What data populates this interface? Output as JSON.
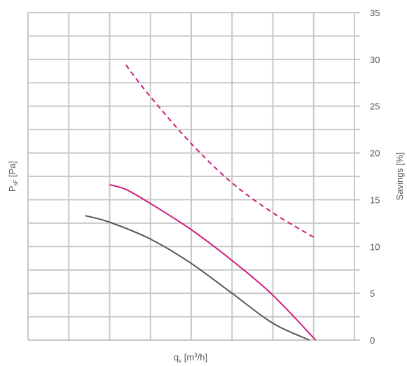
{
  "chart_data": {
    "type": "line",
    "x_axis": {
      "label_main": "q",
      "label_sub": "v",
      "label_unit_open": " [m",
      "label_unit_sup": "3",
      "label_unit_close": "/h]",
      "range": [
        0,
        8
      ],
      "tick_labels_shown": false
    },
    "y_axis_left": {
      "label_main": "P",
      "label_sub": "sF",
      "label_unit": " [Pa]",
      "range": [
        0,
        35
      ],
      "tick_labels_shown": false
    },
    "y_axis_right": {
      "label": "Savings [%]",
      "range": [
        0,
        35
      ],
      "ticks": [
        "0",
        "5",
        "10",
        "15",
        "20",
        "25",
        "30",
        "35"
      ]
    },
    "grid": true,
    "series": [
      {
        "style": "solid",
        "color": "#595959",
        "axis": "left",
        "points": [
          [
            1.4,
            13.3
          ],
          [
            2.0,
            12.6
          ],
          [
            3.0,
            10.8
          ],
          [
            4.0,
            8.2
          ],
          [
            5.0,
            5.0
          ],
          [
            6.0,
            1.8
          ],
          [
            6.9,
            0.0
          ]
        ]
      },
      {
        "style": "solid",
        "color": "#cc1f7e",
        "axis": "left",
        "points": [
          [
            2.0,
            16.6
          ],
          [
            2.4,
            16.1
          ],
          [
            3.0,
            14.6
          ],
          [
            4.0,
            11.8
          ],
          [
            5.0,
            8.5
          ],
          [
            6.0,
            4.8
          ],
          [
            7.05,
            0.0
          ]
        ]
      },
      {
        "style": "dashed",
        "color": "#cc1f7e",
        "axis": "right",
        "points": [
          [
            2.4,
            29.4
          ],
          [
            3.0,
            26.0
          ],
          [
            4.0,
            21.0
          ],
          [
            5.0,
            16.8
          ],
          [
            6.0,
            13.6
          ],
          [
            7.0,
            11.0
          ]
        ]
      }
    ]
  }
}
